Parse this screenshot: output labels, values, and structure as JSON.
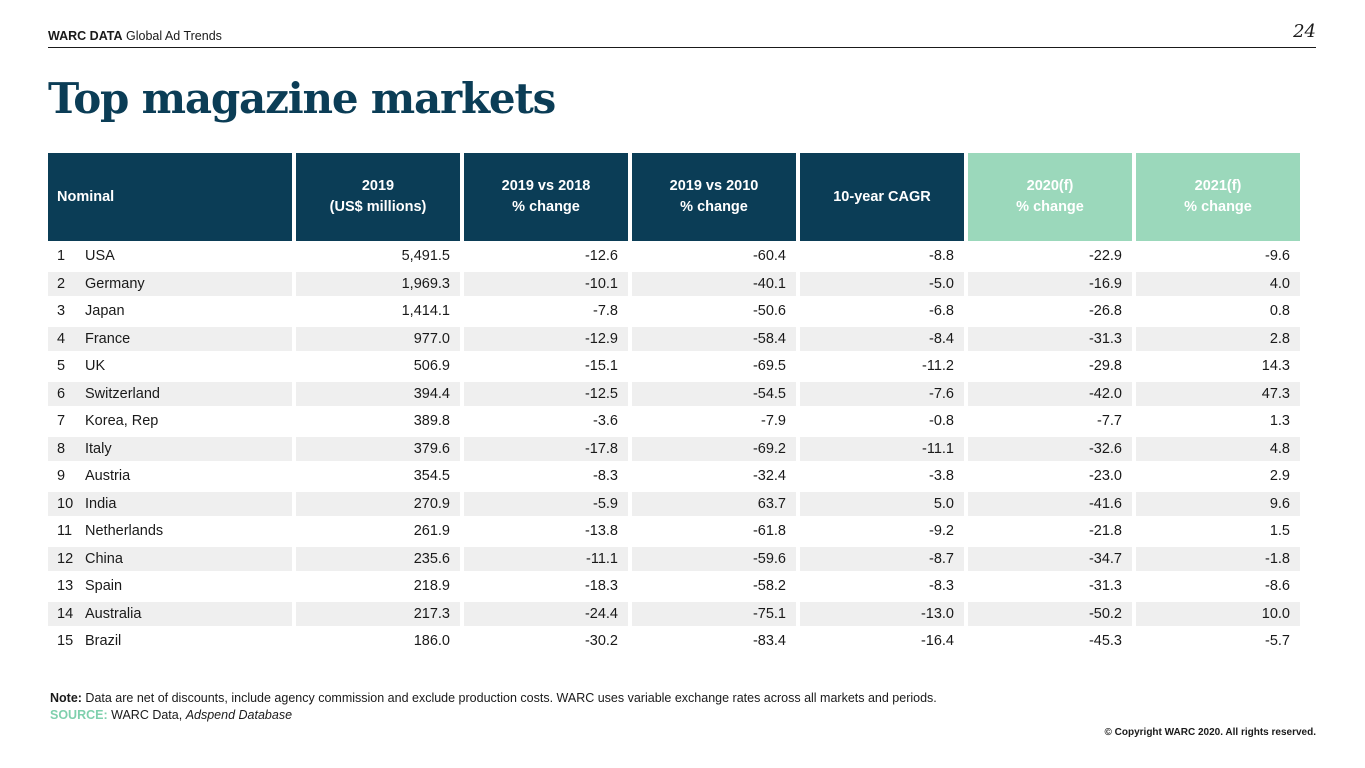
{
  "header": {
    "brand_bold": "WARC DATA",
    "brand_rest": " Global Ad Trends",
    "page_number": "24"
  },
  "title": "Top magazine markets",
  "table": {
    "columns": [
      {
        "line1": "Nominal",
        "line2": ""
      },
      {
        "line1": "2019",
        "line2": "(US$ millions)"
      },
      {
        "line1": "2019 vs 2018",
        "line2": "% change"
      },
      {
        "line1": "2019 vs 2010",
        "line2": "% change"
      },
      {
        "line1": "10-year CAGR",
        "line2": ""
      },
      {
        "line1": "2020(f)",
        "line2": "% change"
      },
      {
        "line1": "2021(f)",
        "line2": "% change"
      }
    ],
    "rows": [
      {
        "rank": "1",
        "market": "USA",
        "v2019": "5,491.5",
        "vs2018": "-12.6",
        "vs2010": "-60.4",
        "cagr": "-8.8",
        "f2020": "-22.9",
        "f2021": "-9.6"
      },
      {
        "rank": "2",
        "market": "Germany",
        "v2019": "1,969.3",
        "vs2018": "-10.1",
        "vs2010": "-40.1",
        "cagr": "-5.0",
        "f2020": "-16.9",
        "f2021": "4.0"
      },
      {
        "rank": "3",
        "market": "Japan",
        "v2019": "1,414.1",
        "vs2018": "-7.8",
        "vs2010": "-50.6",
        "cagr": "-6.8",
        "f2020": "-26.8",
        "f2021": "0.8"
      },
      {
        "rank": "4",
        "market": "France",
        "v2019": "977.0",
        "vs2018": "-12.9",
        "vs2010": "-58.4",
        "cagr": "-8.4",
        "f2020": "-31.3",
        "f2021": "2.8"
      },
      {
        "rank": "5",
        "market": "UK",
        "v2019": "506.9",
        "vs2018": "-15.1",
        "vs2010": "-69.5",
        "cagr": "-11.2",
        "f2020": "-29.8",
        "f2021": "14.3"
      },
      {
        "rank": "6",
        "market": "Switzerland",
        "v2019": "394.4",
        "vs2018": "-12.5",
        "vs2010": "-54.5",
        "cagr": "-7.6",
        "f2020": "-42.0",
        "f2021": "47.3"
      },
      {
        "rank": "7",
        "market": "Korea, Rep",
        "v2019": "389.8",
        "vs2018": "-3.6",
        "vs2010": "-7.9",
        "cagr": "-0.8",
        "f2020": "-7.7",
        "f2021": "1.3"
      },
      {
        "rank": "8",
        "market": "Italy",
        "v2019": "379.6",
        "vs2018": "-17.8",
        "vs2010": "-69.2",
        "cagr": "-11.1",
        "f2020": "-32.6",
        "f2021": "4.8"
      },
      {
        "rank": "9",
        "market": "Austria",
        "v2019": "354.5",
        "vs2018": "-8.3",
        "vs2010": "-32.4",
        "cagr": "-3.8",
        "f2020": "-23.0",
        "f2021": "2.9"
      },
      {
        "rank": "10",
        "market": "India",
        "v2019": "270.9",
        "vs2018": "-5.9",
        "vs2010": "63.7",
        "cagr": "5.0",
        "f2020": "-41.6",
        "f2021": "9.6"
      },
      {
        "rank": "11",
        "market": "Netherlands",
        "v2019": "261.9",
        "vs2018": "-13.8",
        "vs2010": "-61.8",
        "cagr": "-9.2",
        "f2020": "-21.8",
        "f2021": "1.5"
      },
      {
        "rank": "12",
        "market": "China",
        "v2019": "235.6",
        "vs2018": "-11.1",
        "vs2010": "-59.6",
        "cagr": "-8.7",
        "f2020": "-34.7",
        "f2021": "-1.8"
      },
      {
        "rank": "13",
        "market": "Spain",
        "v2019": "218.9",
        "vs2018": "-18.3",
        "vs2010": "-58.2",
        "cagr": "-8.3",
        "f2020": "-31.3",
        "f2021": "-8.6"
      },
      {
        "rank": "14",
        "market": "Australia",
        "v2019": "217.3",
        "vs2018": "-24.4",
        "vs2010": "-75.1",
        "cagr": "-13.0",
        "f2020": "-50.2",
        "f2021": "10.0"
      },
      {
        "rank": "15",
        "market": "Brazil",
        "v2019": "186.0",
        "vs2018": "-30.2",
        "vs2010": "-83.4",
        "cagr": "-16.4",
        "f2020": "-45.3",
        "f2021": "-5.7"
      }
    ]
  },
  "footer": {
    "note_label": "Note:",
    "note_text": " Data are net of discounts, include agency commission and exclude production costs. WARC uses variable exchange rates across all markets and periods.",
    "source_label": "SOURCE:",
    "source_text": " WARC Data, ",
    "source_italic": "Adspend Database",
    "copyright": "© Copyright WARC 2020. All rights reserved."
  },
  "colors": {
    "header_fill": "#0b3d56",
    "forecast_fill": "#9bd8bb",
    "alt_row": "#efefef",
    "source_accent": "#7fd0ad"
  }
}
